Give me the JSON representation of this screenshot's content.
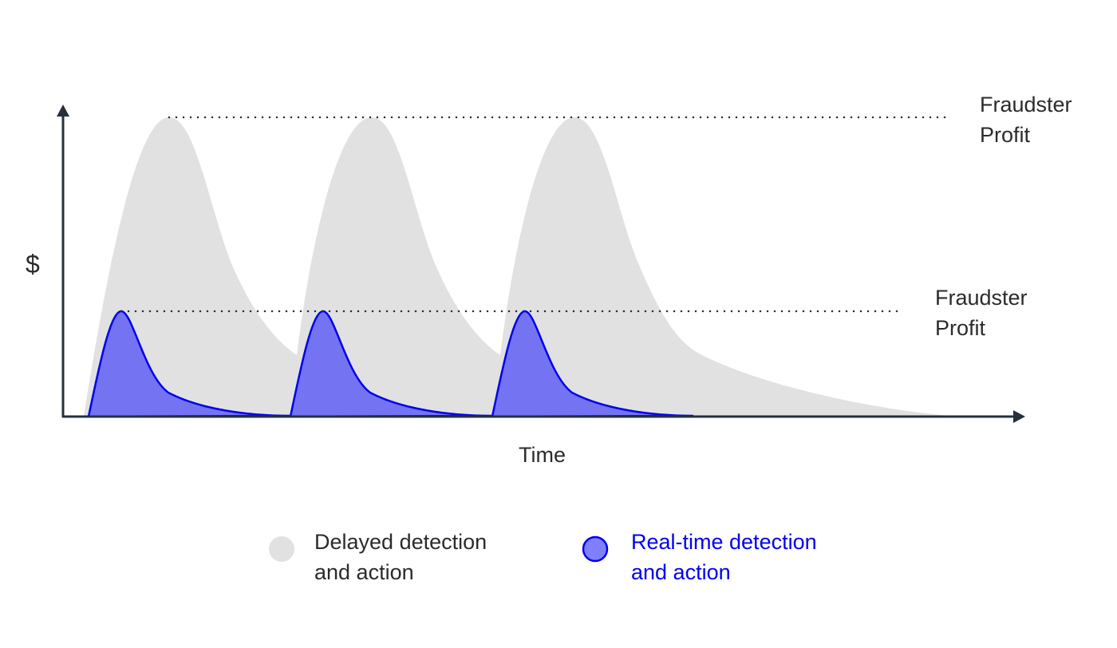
{
  "diagram": {
    "y_axis_label": "$",
    "x_axis_label": "Time",
    "upper_line_label": "Fraudster Profit",
    "lower_line_label": "Fraudster Profit",
    "legend": [
      {
        "label": "Delayed detection and action",
        "line1": "Delayed detection",
        "line2": "and action",
        "color": "#e1e1e1"
      },
      {
        "label": "Real-time detection and action",
        "line1": "Real-time detection",
        "line2": "and action",
        "color": "#7474f2",
        "stroke": "#0000ee"
      }
    ],
    "colors": {
      "axis": "#25303b",
      "delayed_fill": "#e1e1e1",
      "realtime_fill": "#7474f2",
      "realtime_stroke": "#0000ee",
      "dotted": "#25303b"
    }
  }
}
